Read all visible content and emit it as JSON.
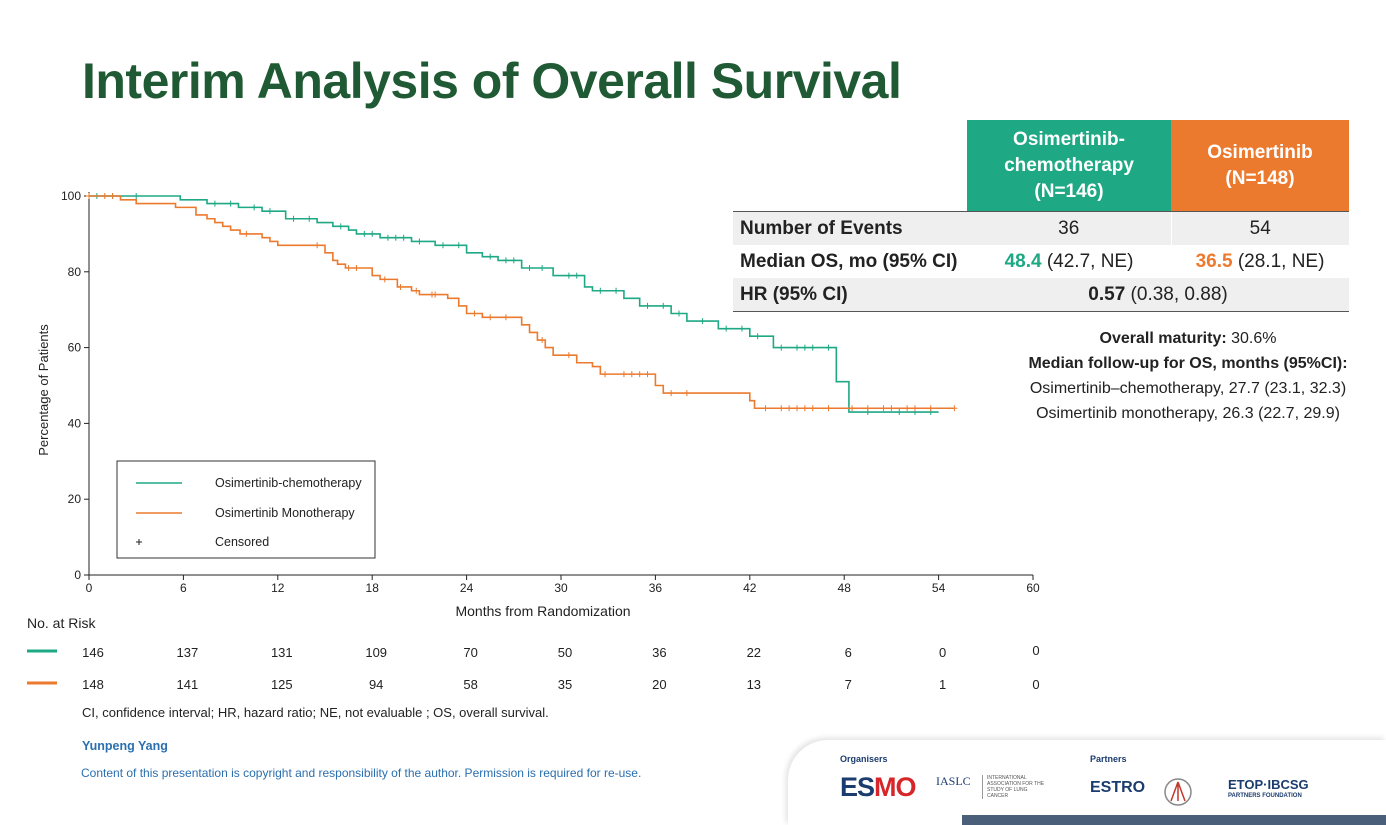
{
  "title": "Interim Analysis of Overall Survival",
  "colors": {
    "title": "#1f5a34",
    "chemo": "#1ea884",
    "mono": "#ec7a2e"
  },
  "table": {
    "header_chemo": "Osimertinib-chemotherapy (N=146)",
    "header_mono": "Osimertinib (N=148)",
    "rows": {
      "events_label": "Number of Events",
      "events_chemo": "36",
      "events_mono": "54",
      "median_label": "Median OS, mo (95% CI)",
      "median_chemo_value": "48.4",
      "median_chemo_ci": " (42.7, NE)",
      "median_mono_value": "36.5",
      "median_mono_ci": " (28.1, NE)",
      "hr_label": "HR (95% CI)",
      "hr_value": "0.57",
      "hr_ci": " (0.38, 0.88)"
    }
  },
  "maturity": {
    "label": "Overall maturity:",
    "value": " 30.6%",
    "followup_label": "Median follow-up for OS, months (95%CI):",
    "chemo_line": "Osimertinib–chemotherapy, 27.7 (23.1, 32.3)",
    "mono_line": "Osimertinib monotherapy, 26.3 (22.7, 29.9)"
  },
  "chart_data": {
    "type": "line",
    "title": "",
    "xlabel": "Months from Randomization",
    "ylabel": "Percentage of Patients",
    "xlim": [
      0,
      60
    ],
    "ylim": [
      0,
      100
    ],
    "xticks": [
      0,
      6,
      12,
      18,
      24,
      30,
      36,
      42,
      48,
      54,
      60
    ],
    "yticks": [
      0,
      20,
      40,
      60,
      80,
      100
    ],
    "legend": {
      "placement": "lower-left",
      "entries": [
        "Osimertinib-chemotherapy",
        "Osimertinib Monotherapy",
        "Censored"
      ]
    },
    "series": [
      {
        "name": "Osimertinib-chemotherapy",
        "color": "#1ea884",
        "points": [
          [
            0,
            100
          ],
          [
            5.8,
            99
          ],
          [
            7.5,
            98
          ],
          [
            9.5,
            97
          ],
          [
            11,
            96
          ],
          [
            12.5,
            94
          ],
          [
            14.5,
            93
          ],
          [
            15.5,
            92
          ],
          [
            16.5,
            91
          ],
          [
            17,
            90
          ],
          [
            18.5,
            89
          ],
          [
            20.5,
            88
          ],
          [
            22,
            87
          ],
          [
            24,
            85
          ],
          [
            25,
            84
          ],
          [
            26,
            83
          ],
          [
            27.5,
            81
          ],
          [
            29.5,
            79
          ],
          [
            31.5,
            76
          ],
          [
            32,
            75
          ],
          [
            34,
            73
          ],
          [
            35,
            71
          ],
          [
            37,
            69
          ],
          [
            38,
            67
          ],
          [
            40,
            65
          ],
          [
            42,
            63
          ],
          [
            43.5,
            60
          ],
          [
            47.5,
            51
          ],
          [
            48.3,
            43
          ],
          [
            54,
            43
          ]
        ],
        "censored": [
          0.5,
          1.5,
          3,
          8,
          9,
          10.5,
          11.5,
          13,
          14,
          16,
          17.5,
          18,
          19,
          19.5,
          20,
          21,
          22.5,
          23.5,
          25.5,
          26.5,
          27,
          28,
          28.8,
          30.5,
          31,
          32.5,
          33.5,
          35.5,
          36.5,
          37.5,
          39,
          40.5,
          41.5,
          42.5,
          44,
          45,
          45.5,
          46,
          47,
          49.5,
          51.5,
          52.5,
          53.5
        ]
      },
      {
        "name": "Osimertinib Monotherapy",
        "color": "#ec7a2e",
        "points": [
          [
            0,
            100
          ],
          [
            2,
            99
          ],
          [
            3,
            98
          ],
          [
            5.5,
            97
          ],
          [
            6.8,
            95
          ],
          [
            7.5,
            94
          ],
          [
            8,
            93
          ],
          [
            8.5,
            92
          ],
          [
            9,
            91
          ],
          [
            9.6,
            90
          ],
          [
            11,
            89
          ],
          [
            11.5,
            88
          ],
          [
            12,
            87
          ],
          [
            15,
            85
          ],
          [
            15.5,
            83
          ],
          [
            15.8,
            82
          ],
          [
            16.3,
            81
          ],
          [
            18,
            79
          ],
          [
            18.5,
            78
          ],
          [
            19.6,
            76
          ],
          [
            20.5,
            75
          ],
          [
            21,
            74
          ],
          [
            22.8,
            73
          ],
          [
            23.5,
            71
          ],
          [
            24,
            69
          ],
          [
            25,
            68
          ],
          [
            27.5,
            66
          ],
          [
            28,
            64
          ],
          [
            28.5,
            62
          ],
          [
            29,
            60
          ],
          [
            29.5,
            58
          ],
          [
            31,
            56
          ],
          [
            32,
            55
          ],
          [
            32.5,
            53
          ],
          [
            36,
            50
          ],
          [
            36.5,
            48
          ],
          [
            42,
            46
          ],
          [
            42.3,
            44
          ],
          [
            55,
            44
          ]
        ],
        "censored": [
          0,
          1,
          1.5,
          10,
          14.5,
          16.5,
          17,
          18.8,
          19.8,
          20.8,
          21.8,
          22,
          24.5,
          25.5,
          26.5,
          28.8,
          30.5,
          32.8,
          34,
          34.5,
          35,
          35.5,
          37,
          38,
          43,
          44,
          44.5,
          45,
          45.5,
          46,
          47,
          48.5,
          49.5,
          50.5,
          51,
          52,
          52.5,
          53.5,
          55
        ]
      }
    ],
    "risk_table": {
      "title": "No. at Risk",
      "months": [
        0,
        6,
        12,
        18,
        24,
        30,
        36,
        42,
        48,
        54,
        60
      ],
      "chemo": [
        "146",
        "137",
        "131",
        "109",
        "70",
        "50",
        "36",
        "22",
        "6",
        "0",
        "0"
      ],
      "mono": [
        "148",
        "141",
        "125",
        "94",
        "58",
        "35",
        "20",
        "13",
        "7",
        "1",
        "0"
      ]
    }
  },
  "footnote": "CI, confidence interval; HR, hazard ratio; NE, not evaluable ; OS, overall survival.",
  "author": "Yunpeng Yang",
  "copyright": "Content of this presentation is copyright and responsibility of the author. Permission is required for re-use.",
  "logos": {
    "organisers_label": "Organisers",
    "partners_label": "Partners",
    "esmo_a": "ES",
    "esmo_b": "MO",
    "iaslc": "IASLC",
    "iaslc_sub": "INTERNATIONAL ASSOCIATION FOR THE STUDY OF LUNG CANCER",
    "estro": "ESTRO",
    "etop": "ETOP·IBCSG",
    "etop_sub": "PARTNERS FOUNDATION"
  }
}
